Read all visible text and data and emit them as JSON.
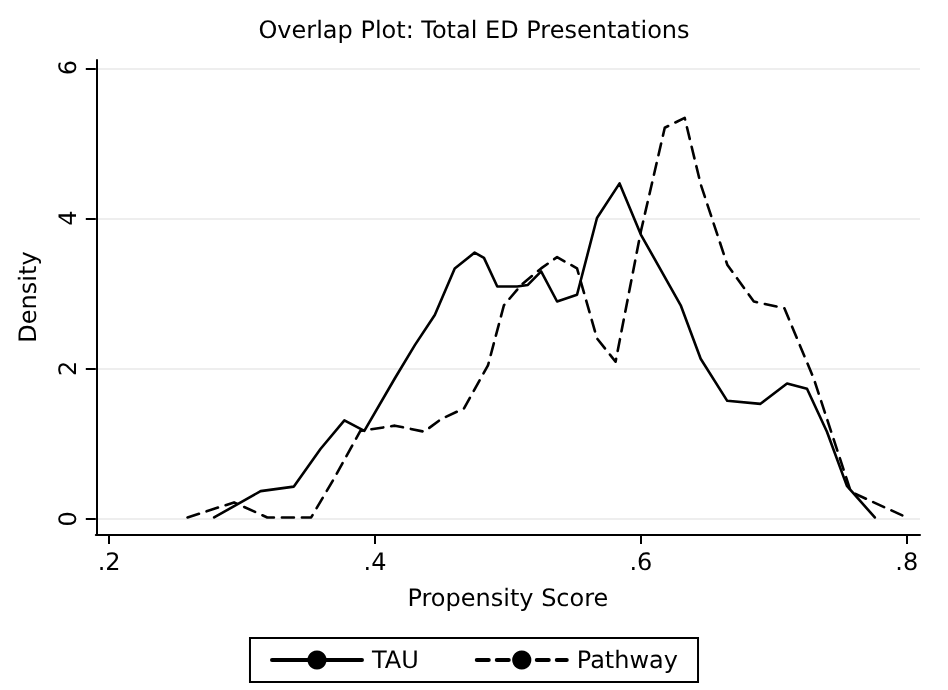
{
  "chart_data": {
    "type": "line",
    "title": "Overlap Plot: Total ED Presentations",
    "xlabel": "Propensity Score",
    "ylabel": "Density",
    "xlim": [
      0.19,
      0.81
    ],
    "xticks": [
      {
        "value": 0.2,
        "label": ".2"
      },
      {
        "value": 0.4,
        "label": ".4"
      },
      {
        "value": 0.6,
        "label": ".6"
      },
      {
        "value": 0.8,
        "label": ".8"
      }
    ],
    "ylim": [
      -0.2,
      6.1
    ],
    "yticks": [
      0,
      2,
      4,
      6
    ],
    "grid": "y",
    "legend": "bottom",
    "marker": "none",
    "series": [
      {
        "name": "TAU",
        "color": "#000000",
        "line_style": "solid",
        "x": [
          0.279,
          0.314,
          0.339,
          0.359,
          0.377,
          0.392,
          0.415,
          0.43,
          0.445,
          0.46,
          0.475,
          0.482,
          0.492,
          0.507,
          0.515,
          0.525,
          0.537,
          0.552,
          0.567,
          0.584,
          0.6,
          0.63,
          0.645,
          0.665,
          0.69,
          0.71,
          0.725,
          0.74,
          0.755,
          0.776
        ],
        "values": [
          0.02,
          0.37,
          0.43,
          0.93,
          1.31,
          1.17,
          1.87,
          2.31,
          2.71,
          3.33,
          3.54,
          3.47,
          3.09,
          3.09,
          3.11,
          3.29,
          2.89,
          2.98,
          4.0,
          4.46,
          3.78,
          2.84,
          2.13,
          1.57,
          1.53,
          1.8,
          1.73,
          1.16,
          0.44,
          0.02
        ]
      },
      {
        "name": "Pathway",
        "color": "#000000",
        "line_style": "dashed",
        "x": [
          0.259,
          0.294,
          0.319,
          0.352,
          0.369,
          0.389,
          0.415,
          0.437,
          0.45,
          0.467,
          0.485,
          0.497,
          0.51,
          0.525,
          0.537,
          0.552,
          0.567,
          0.581,
          0.6,
          0.618,
          0.633,
          0.645,
          0.665,
          0.685,
          0.708,
          0.73,
          0.758,
          0.8
        ],
        "values": [
          0.02,
          0.22,
          0.02,
          0.02,
          0.53,
          1.17,
          1.24,
          1.16,
          1.33,
          1.47,
          2.04,
          2.84,
          3.11,
          3.33,
          3.48,
          3.33,
          2.4,
          2.09,
          3.82,
          5.2,
          5.33,
          4.45,
          3.38,
          2.89,
          2.8,
          1.87,
          0.36,
          0.02
        ]
      }
    ]
  }
}
